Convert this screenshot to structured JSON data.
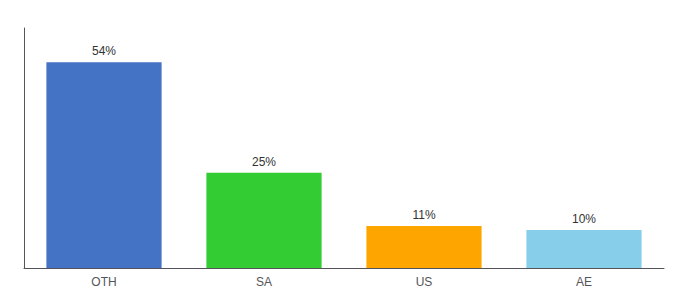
{
  "chart_data": {
    "type": "bar",
    "categories": [
      "OTH",
      "SA",
      "US",
      "AE"
    ],
    "values": [
      54,
      25,
      11,
      10
    ],
    "colors": [
      "#4472C4",
      "#33CC33",
      "#FFA500",
      "#87CEEB"
    ],
    "data_labels": true,
    "value_labels": [
      "54%",
      "25%",
      "11%",
      "10%"
    ],
    "ylim": [
      0,
      63
    ],
    "tick_labels": "x",
    "grid": false
  }
}
